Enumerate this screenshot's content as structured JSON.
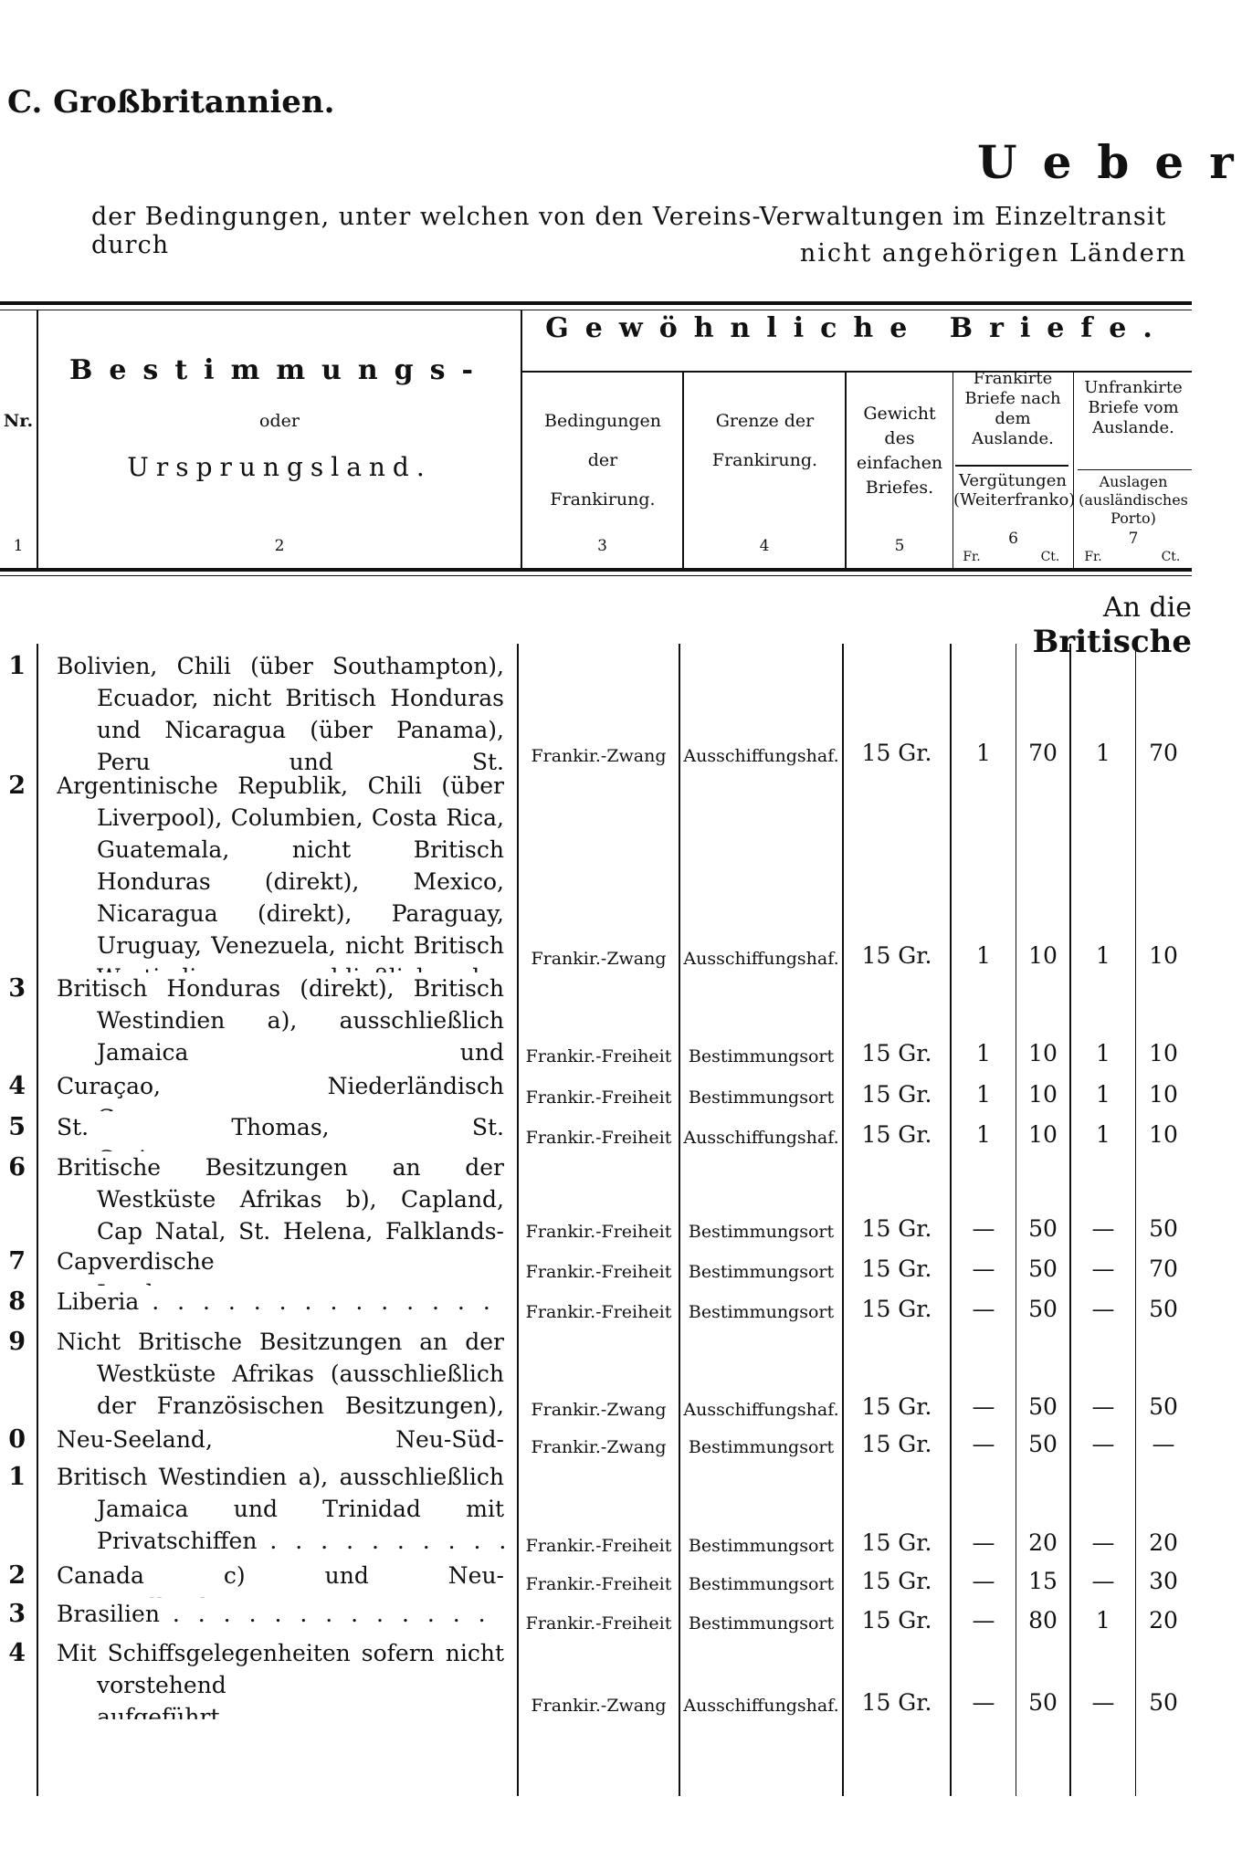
{
  "page": {
    "section_title": "C. Großbritannien.",
    "heading": "Ueber",
    "subtitle_line1": "der Bedingungen, unter welchen von den Vereins-Verwaltungen im Einzeltransit durch",
    "subtitle_line2": "nicht angehörigen Ländern",
    "region_heading_prefix": "An die",
    "region_heading_bold": "Britische"
  },
  "header": {
    "nr": "Nr.",
    "dest_line1": "Bestimmungs-",
    "dest_line2": "oder",
    "dest_line3": "Ursprungsland.",
    "group": "Gewöhnliche Briefe.",
    "col3": "Bedingungen der Frankirung.",
    "col4": "Grenze der Frankirung.",
    "col5": "Gewicht des einfachen Briefes.",
    "col6_top": "Frankirte Briefe nach dem Auslande.",
    "col6_bottom": "Vergütungen (Weiterfranko)",
    "col7_top": "Unfrankirte Briefe vom Auslande.",
    "col7_bottom": "Auslagen (ausländisches Porto)",
    "numbers": [
      "1",
      "2",
      "3",
      "4",
      "5",
      "6",
      "7"
    ],
    "fr": "Fr.",
    "ct": "Ct."
  },
  "rows": [
    {
      "nr": "1",
      "dest": "Bolivien, Chili (über Southampton), Ecuador, nicht Britisch Honduras und Nicaragua (über Panama), Peru und St. Salvador",
      "cond": "Frankir.-Zwang",
      "limit": "Ausschiffungshaf.",
      "weight": "15 Gr.",
      "v_fr": "1",
      "v_ct": "70",
      "a_fr": "1",
      "a_ct": "70"
    },
    {
      "nr": "2",
      "dest": "Argentinische Republik, Chili (über Liverpool), Columbien, Costa Rica, Guatemala, nicht Britisch Honduras (direkt), Mexico, Nicaragua (direkt), Paraguay, Uruguay, Venezuela, nicht Britisch Westindien, ausschließlich der Französischen Besitzungen",
      "cond": "Frankir.-Zwang",
      "limit": "Ausschiffungshaf.",
      "weight": "15 Gr.",
      "v_fr": "1",
      "v_ct": "10",
      "a_fr": "1",
      "a_ct": "10"
    },
    {
      "nr": "3",
      "dest": "Britisch Honduras (direkt), Britisch Westindien a), ausschließlich Jamaica und Trinidad",
      "cond": "Frankir.-Freiheit",
      "limit": "Bestimmungsort",
      "weight": "15 Gr.",
      "v_fr": "1",
      "v_ct": "10",
      "a_fr": "1",
      "a_ct": "10"
    },
    {
      "nr": "4",
      "dest": "Curaçao, Niederländisch Guyana",
      "cond": "Frankir.-Freiheit",
      "limit": "Bestimmungsort",
      "weight": "15 Gr.",
      "v_fr": "1",
      "v_ct": "10",
      "a_fr": "1",
      "a_ct": "10"
    },
    {
      "nr": "5",
      "dest": "St. Thomas, St. Croix",
      "cond": "Frankir.-Freiheit",
      "limit": "Ausschiffungshaf.",
      "weight": "15 Gr.",
      "v_fr": "1",
      "v_ct": "10",
      "a_fr": "1",
      "a_ct": "10"
    },
    {
      "nr": "6",
      "dest": "Britische Besitzungen an der Westküste Afrikas b), Capland, Cap Natal, St. Helena, Falklands-Inseln",
      "cond": "Frankir.-Freiheit",
      "limit": "Bestimmungsort",
      "weight": "15 Gr.",
      "v_fr": "—",
      "v_ct": "50",
      "a_fr": "—",
      "a_ct": "50"
    },
    {
      "nr": "7",
      "dest": "Capverdische Inseln",
      "cond": "Frankir.-Freiheit",
      "limit": "Bestimmungsort",
      "weight": "15 Gr.",
      "v_fr": "—",
      "v_ct": "50",
      "a_fr": "—",
      "a_ct": "70"
    },
    {
      "nr": "8",
      "dest": "Liberia",
      "cond": "Frankir.-Freiheit",
      "limit": "Bestimmungsort",
      "weight": "15 Gr.",
      "v_fr": "—",
      "v_ct": "50",
      "a_fr": "—",
      "a_ct": "50"
    },
    {
      "nr": "9",
      "dest": "Nicht Britische Besitzungen an der Westküste Afrikas (ausschließlich der Französischen Besitzungen), Ascension",
      "cond": "Frankir.-Zwang",
      "limit": "Ausschiffungshaf.",
      "weight": "15 Gr.",
      "v_fr": "—",
      "v_ct": "50",
      "a_fr": "—",
      "a_ct": "50"
    },
    {
      "nr": "0",
      "dest": "Neu-Seeland, Neu-Süd-Wales",
      "cond": "Frankir.-Zwang",
      "limit": "Bestimmungsort",
      "weight": "15 Gr.",
      "v_fr": "—",
      "v_ct": "50",
      "a_fr": "—",
      "a_ct": "—"
    },
    {
      "nr": "1",
      "dest": "Britisch Westindien a), ausschließlich Jamaica und Trinidad mit Privatschiffen",
      "cond": "Frankir.-Freiheit",
      "limit": "Bestimmungsort",
      "weight": "15 Gr.",
      "v_fr": "—",
      "v_ct": "20",
      "a_fr": "—",
      "a_ct": "20"
    },
    {
      "nr": "2",
      "dest": "Canada c) und Neu-Fundland",
      "cond": "Frankir.-Freiheit",
      "limit": "Bestimmungsort",
      "weight": "15 Gr.",
      "v_fr": "—",
      "v_ct": "15",
      "a_fr": "—",
      "a_ct": "30"
    },
    {
      "nr": "3",
      "dest": "Brasilien",
      "cond": "Frankir.-Freiheit",
      "limit": "Bestimmungsort",
      "weight": "15 Gr.",
      "v_fr": "—",
      "v_ct": "80",
      "a_fr": "1",
      "a_ct": "20"
    },
    {
      "nr": "4",
      "dest": "Mit Schiffsgelegenheiten sofern nicht vorstehend aufgeführt",
      "cond": "Frankir.-Zwang",
      "limit": "Ausschiffungshaf.",
      "weight": "15 Gr.",
      "v_fr": "—",
      "v_ct": "50",
      "a_fr": "—",
      "a_ct": "50"
    }
  ]
}
